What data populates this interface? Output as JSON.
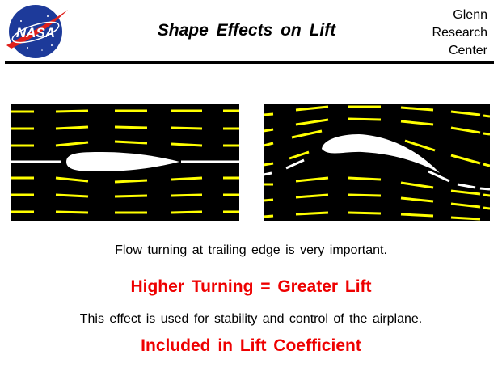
{
  "header": {
    "logo_text": "NASA",
    "title": "Shape  Effects  on  Lift",
    "center_lines": [
      "Glenn",
      "Research",
      "Center"
    ]
  },
  "figure": {
    "left_panel": {
      "airfoil": "symmetric"
    },
    "right_panel": {
      "airfoil": "cambered"
    },
    "streamline_color": "#ffff00",
    "airfoil_color": "#ffffff",
    "background_color": "#000000"
  },
  "text": {
    "note_trailing_edge": "Flow turning at trailing edge is very important.",
    "headline_turning": "Higher Turning = Greater Lift",
    "note_stability": "This effect is used for stability and control of the airplane.",
    "headline_coefficient": "Included in Lift Coefficient"
  },
  "colors": {
    "headline": "#ee0000",
    "rule": "#000000"
  }
}
